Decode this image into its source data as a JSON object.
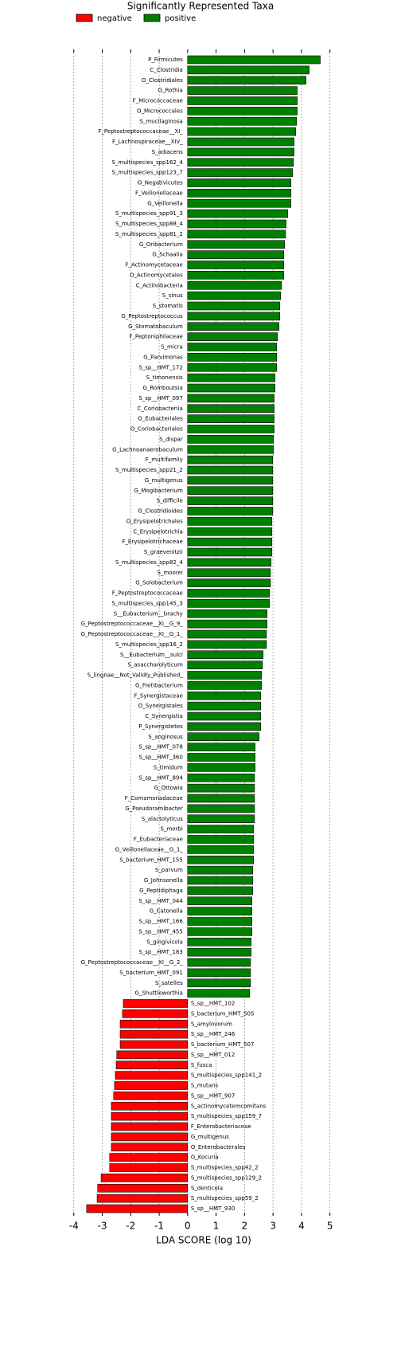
{
  "chart_data": {
    "type": "bar",
    "orientation": "horizontal",
    "title": "Significantly Represented Taxa",
    "x_label": "LDA SCORE (log 10)",
    "xlim": [
      -4.3,
      5.4
    ],
    "xticks": [
      -4,
      -3,
      -2,
      -1,
      0,
      1,
      2,
      3,
      4,
      5
    ],
    "grid": true,
    "categories": [
      "P_Firmicutes",
      "C_Clostridia",
      "O_Clostridiales",
      "G_Rothia",
      "F_Micrococcaceae",
      "O_Micrococcales",
      "S_mucilaginosa",
      "F_Peptostreptococcaceae__XI_",
      "F_Lachnospiraceae__XIV_",
      "S_adiacens",
      "S_multispecies_spp162_4",
      "S_multispecies_spp123_7",
      "O_Negativicutes",
      "F_Veillonellaceae",
      "G_Veillonella",
      "S_multispecies_spp91_3",
      "S_multispecies_spp88_4",
      "S_multispecies_spp81_2",
      "G_Oribacterium",
      "G_Schaalia",
      "F_Actinomycetaceae",
      "O_Actinomycetales",
      "C_Actinobacteria",
      "S_sinus",
      "S_stomatis",
      "G_Peptostreptococcus",
      "G_Stomatobaculum",
      "F_Peptoniphilaceae",
      "S_micra",
      "G_Parvimonas",
      "S_sp__HMT_172",
      "S_timonensis",
      "G_Romboutsia",
      "S_sp__HMT_097",
      "C_Coriobacteriia",
      "O_Eubacteriales",
      "O_Coriobacteriales",
      "S_dispar",
      "G_Lachnoanaerobaculum",
      "F_multifamily",
      "S_multispecies_spp21_2",
      "G_multigenus",
      "G_Mogibacterium",
      "S_difficile",
      "G_Clostridioides",
      "O_Erysipelotrichales",
      "C_Erysipelotrichia",
      "F_Erysipelotrichaceae",
      "S_graevenitzii",
      "S_multispecies_spp82_4",
      "S_moorei",
      "G_Solobacterium",
      "F_Peptostreptococcaceae",
      "S_multispecies_spp145_3",
      "S__Eubacterium__brachy",
      "G_Peptostreptococcaceae__XI__G_9_",
      "G_Peptostreptococcaceae__XI__G_1_",
      "S_multispecies_spp16_2",
      "S__Eubacterium__sulci",
      "S_asaccharolyticum",
      "S_lingnae__Not_Validly_Published_",
      "G_Fretibacterium",
      "F_Synergistaceae",
      "O_Synergistales",
      "C_Synergistia",
      "P_Synergistetes",
      "S_anginosus",
      "S_sp__HMT_078",
      "S_sp__HMT_360",
      "S_timidum",
      "S_sp__HMT_894",
      "G_Ottowia",
      "F_Comamonadaceae",
      "G_Pseudoramibacter",
      "S_alactolyticus",
      "S_morbi",
      "F_Eubacteriaceae",
      "G_Veillonellaceae__G_1_",
      "S_bacterium_HMT_155",
      "S_parvum",
      "G_Johnsonella",
      "G_Peptidiphaga",
      "S_sp__HMT_044",
      "G_Catonella",
      "S_sp__HMT_166",
      "S_sp__HMT_455",
      "S_gingivicola",
      "S_sp__HMT_183",
      "G_Peptostreptococcaceae__XI__G_2_",
      "S_bacterium_HMT_091",
      "S_satelles",
      "G_Shuttleworthia",
      "S_sp__HMT_102",
      "S_bacterium_HMT_505",
      "S_amylovorum",
      "S_sp__HMT_246",
      "S_bacterium_HMT_507",
      "S_sp__HMT_012",
      "S_fusca",
      "S_multispecies_spp141_2",
      "S_mutans",
      "S_sp__HMT_907",
      "S_actinomycetemcomitans",
      "S_multispecies_spp159_7",
      "F_Enterobacteriaceae",
      "G_multigenus",
      "O_Enterobacterales",
      "G_Kocuria",
      "S_multispecies_spp42_2",
      "S_multispecies_spp129_2",
      "S_denticola",
      "S_multispecies_spp59_2",
      "S_sp__HMT_930"
    ],
    "series": [
      {
        "name": "negative",
        "color": "#ff0000",
        "values": [
          null,
          null,
          null,
          null,
          null,
          null,
          null,
          null,
          null,
          null,
          null,
          null,
          null,
          null,
          null,
          null,
          null,
          null,
          null,
          null,
          null,
          null,
          null,
          null,
          null,
          null,
          null,
          null,
          null,
          null,
          null,
          null,
          null,
          null,
          null,
          null,
          null,
          null,
          null,
          null,
          null,
          null,
          null,
          null,
          null,
          null,
          null,
          null,
          null,
          null,
          null,
          null,
          null,
          null,
          null,
          null,
          null,
          null,
          null,
          null,
          null,
          null,
          null,
          null,
          null,
          null,
          null,
          null,
          null,
          null,
          null,
          null,
          null,
          null,
          null,
          null,
          null,
          null,
          null,
          null,
          null,
          null,
          null,
          null,
          null,
          null,
          null,
          null,
          null,
          null,
          null,
          null,
          -2.26,
          -2.29,
          -2.37,
          -2.37,
          -2.37,
          -2.49,
          -2.51,
          -2.54,
          -2.57,
          -2.6,
          -2.68,
          -2.68,
          -2.68,
          -2.68,
          -2.68,
          -2.74,
          -2.74,
          -3.04,
          -3.16,
          -3.18,
          -3.55
        ]
      },
      {
        "name": "positive",
        "color": "#008000",
        "values": [
          4.66,
          4.27,
          4.16,
          3.85,
          3.85,
          3.85,
          3.83,
          3.8,
          3.74,
          3.74,
          3.72,
          3.69,
          3.63,
          3.63,
          3.63,
          3.52,
          3.46,
          3.44,
          3.41,
          3.38,
          3.38,
          3.38,
          3.3,
          3.27,
          3.24,
          3.24,
          3.21,
          3.16,
          3.13,
          3.13,
          3.13,
          3.07,
          3.07,
          3.04,
          3.04,
          3.04,
          3.04,
          3.02,
          3.02,
          2.99,
          2.99,
          2.99,
          2.99,
          2.99,
          2.99,
          2.96,
          2.96,
          2.96,
          2.96,
          2.93,
          2.91,
          2.91,
          2.88,
          2.88,
          2.79,
          2.79,
          2.77,
          2.77,
          2.65,
          2.63,
          2.6,
          2.6,
          2.57,
          2.57,
          2.57,
          2.57,
          2.51,
          2.37,
          2.37,
          2.37,
          2.35,
          2.35,
          2.35,
          2.35,
          2.35,
          2.32,
          2.32,
          2.32,
          2.32,
          2.29,
          2.29,
          2.29,
          2.26,
          2.26,
          2.26,
          2.26,
          2.23,
          2.23,
          2.21,
          2.21,
          2.21,
          2.18,
          null,
          null,
          null,
          null,
          null,
          null,
          null,
          null,
          null,
          null,
          null,
          null,
          null,
          null,
          null,
          null,
          null,
          null,
          null,
          null,
          null
        ]
      }
    ]
  }
}
